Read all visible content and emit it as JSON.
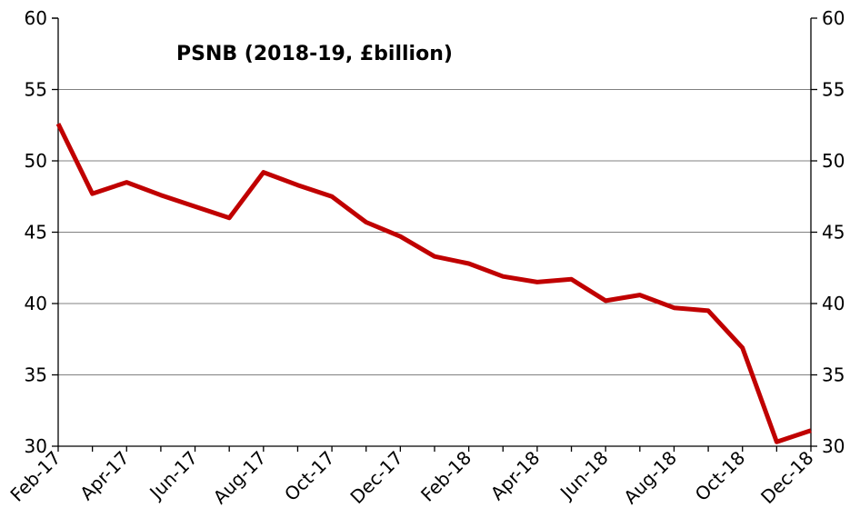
{
  "chart_data": {
    "type": "line",
    "title": "PSNB (2018-19, £billion)",
    "xlabel": "",
    "ylabel": "",
    "x": [
      "Feb-17",
      "Mar-17",
      "Apr-17",
      "May-17",
      "Jun-17",
      "Jul-17",
      "Aug-17",
      "Sep-17",
      "Oct-17",
      "Nov-17",
      "Dec-17",
      "Jan-18",
      "Feb-18",
      "Mar-18",
      "Apr-18",
      "May-18",
      "Jun-18",
      "Jul-18",
      "Aug-18",
      "Sep-18",
      "Oct-18",
      "Nov-18",
      "Dec-18"
    ],
    "x_tick_labels": [
      "Feb-17",
      "Apr-17",
      "Jun-17",
      "Aug-17",
      "Oct-17",
      "Dec-17",
      "Feb-18",
      "Apr-18",
      "Jun-18",
      "Aug-18",
      "Oct-18",
      "Dec-18"
    ],
    "series": [
      {
        "name": "",
        "color": "#c00000",
        "values": [
          52.6,
          47.7,
          48.5,
          47.6,
          46.8,
          46.0,
          49.2,
          48.3,
          47.5,
          45.7,
          44.7,
          43.3,
          42.8,
          41.9,
          41.5,
          41.7,
          40.2,
          40.6,
          39.7,
          39.5,
          36.9,
          30.3,
          31.1
        ]
      }
    ],
    "ylim": [
      30,
      60
    ],
    "y_ticks": [
      30,
      35,
      40,
      45,
      50,
      55,
      60
    ],
    "secondary_y_axis": true,
    "grid": "horizontal",
    "legend": "none"
  }
}
